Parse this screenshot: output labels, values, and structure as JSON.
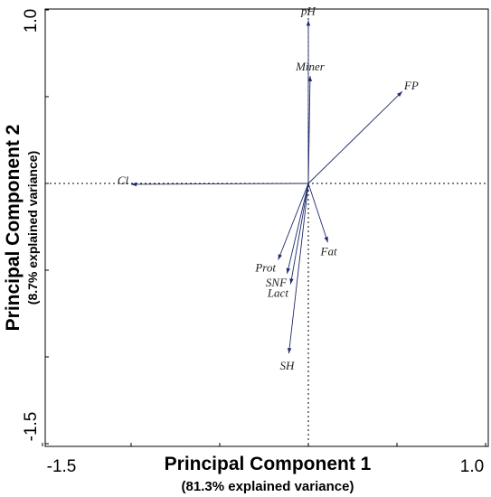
{
  "chart_data": {
    "type": "scatter",
    "subtype": "pca-loadings-biplot",
    "xlabel": "Principal Component 1",
    "xlabel_sub": "(81.3% explained variance)",
    "ylabel": "Principal Component 2",
    "ylabel_sub": "(8.7% explained variance)",
    "xlim": [
      -1.5,
      1.0
    ],
    "ylim": [
      -1.5,
      1.0
    ],
    "x_tick_labels": [
      "-1.5",
      "1.0"
    ],
    "y_tick_labels": [
      "1.0",
      "-1.5"
    ],
    "grid": false,
    "reference_lines": "dotted lines at x=0 and y=0",
    "arrow_color": "#1f2a6b",
    "points": [
      {
        "name": "pH",
        "x": 0.0,
        "y": 0.94
      },
      {
        "name": "Miner",
        "x": 0.01,
        "y": 0.62
      },
      {
        "name": "FP",
        "x": 0.53,
        "y": 0.53
      },
      {
        "name": "Cl",
        "x": -1.0,
        "y": -0.005
      },
      {
        "name": "Prot",
        "x": -0.17,
        "y": -0.44
      },
      {
        "name": "Fat",
        "x": 0.11,
        "y": -0.34
      },
      {
        "name": "SNF",
        "x": -0.12,
        "y": -0.52
      },
      {
        "name": "Lact",
        "x": -0.1,
        "y": -0.58
      },
      {
        "name": "SH",
        "x": -0.11,
        "y": -0.98
      }
    ]
  }
}
